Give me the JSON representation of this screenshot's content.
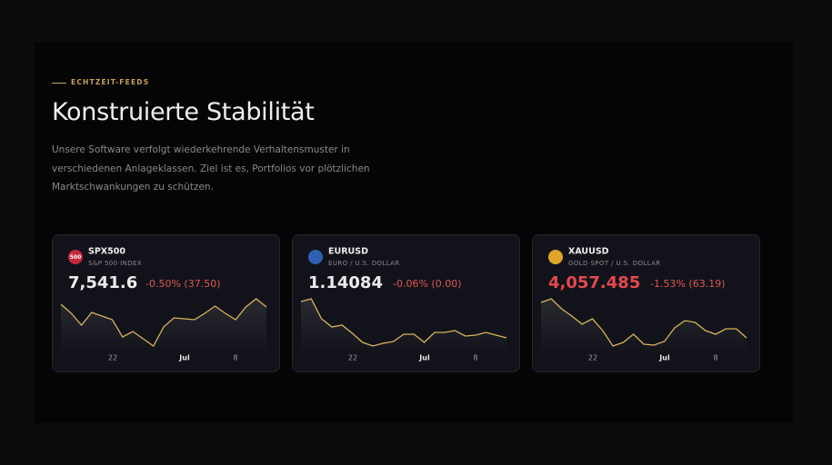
{
  "eyebrow": "ECHTZEIT-FEEDS",
  "title": "Konstruierte Stabilität",
  "description": [
    "Unsere Software verfolgt wiederkehrende Verhaltensmuster in",
    "verschiedenen Anlageklassen. Ziel ist es, Portfolios vor plötzlichen",
    "Marktschwankungen zu schützen."
  ],
  "cards": [
    {
      "symbol": "SPX500",
      "name": "S&P 500 INDEX",
      "icon_label": "500",
      "icon_color": "#c8283c",
      "price": "7,541.6",
      "price_color": "#ececec",
      "change": "-0.50% (37.50)",
      "line_color": "#d9b25a",
      "chart": {
        "x_labels": [
          "22",
          "Jul",
          "8"
        ],
        "ylim": [
          0,
          70
        ],
        "values": [
          55,
          45,
          32,
          46,
          42,
          38,
          19,
          25,
          17,
          9,
          30,
          40,
          39,
          38,
          45,
          53,
          45,
          38,
          52,
          61,
          52
        ]
      }
    },
    {
      "symbol": "EURUSD",
      "name": "EURO / U.S. DOLLAR",
      "icon_color": "#2f5fb3",
      "price": "1.14084",
      "price_color": "#ececec",
      "change": "-0.06% (0.00)",
      "line_color": "#d9b25a",
      "chart": {
        "x_labels": [
          "22",
          "Jul",
          "8"
        ],
        "ylim": [
          0,
          70
        ],
        "values": [
          58,
          61,
          39,
          30,
          32,
          23,
          13,
          9,
          12,
          14,
          22,
          22,
          13,
          24,
          24,
          26,
          20,
          21,
          24,
          21,
          18
        ]
      }
    },
    {
      "symbol": "XAUUSD",
      "name": "GOLD SPOT / U.S. DOLLAR",
      "icon_color": "#e0a526",
      "price": "4,057.485",
      "price_color": "#e5484d",
      "change": "-1.53% (63.19)",
      "line_color": "#d9b25a",
      "chart": {
        "x_labels": [
          "22",
          "Jul",
          "8"
        ],
        "ylim": [
          0,
          70
        ],
        "values": [
          57,
          61,
          50,
          42,
          33,
          39,
          26,
          9,
          13,
          22,
          11,
          10,
          14,
          29,
          37,
          35,
          26,
          22,
          28,
          28,
          18
        ]
      }
    }
  ]
}
